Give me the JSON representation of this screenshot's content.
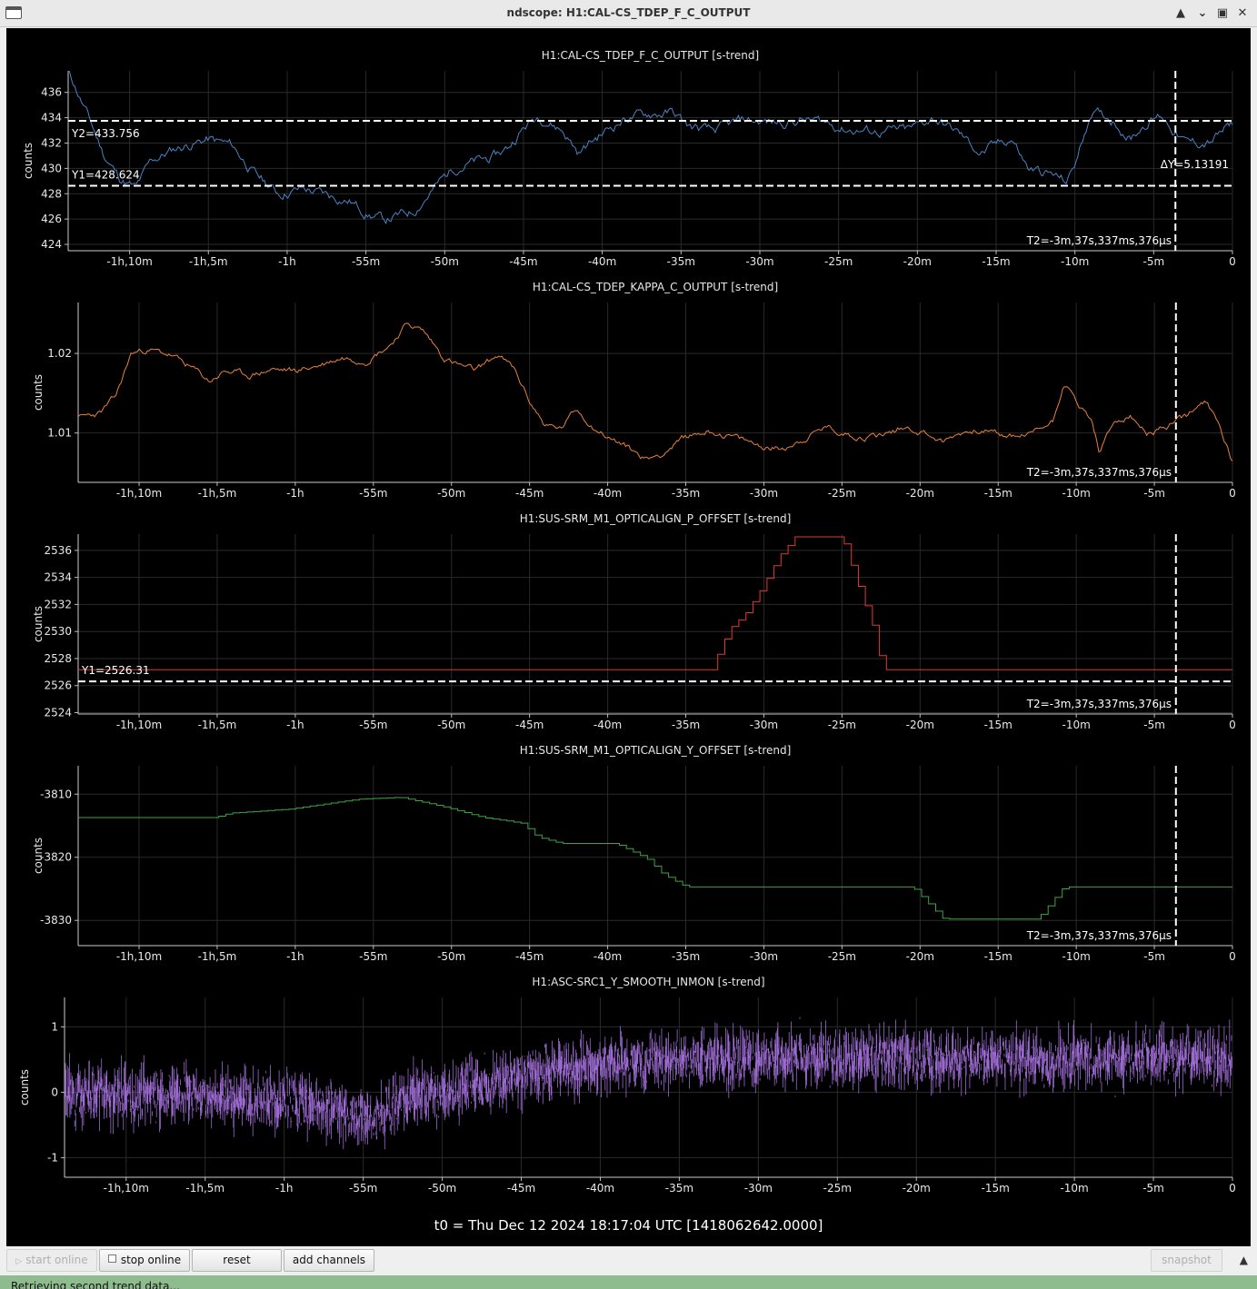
{
  "window": {
    "title": "ndscope: H1:CAL-CS_TDEP_F_C_OUTPUT",
    "buttons": [
      "▲",
      "⌄",
      "▣",
      "✕"
    ]
  },
  "t0_label": "t0 = Thu Dec 12 2024 18:17:04 UTC [1418062642.0000]",
  "x_ticks": [
    "-1h,10m",
    "-1h,5m",
    "-1h",
    "-55m",
    "-50m",
    "-45m",
    "-40m",
    "-35m",
    "-30m",
    "-25m",
    "-20m",
    "-15m",
    "-10m",
    "-5m",
    "0"
  ],
  "x_range_minutes": [
    -73.9,
    0
  ],
  "cursor_t2_minutes": -3.62,
  "t2_label": "T2=-3m,37s,337ms,376µs",
  "toolbar": {
    "start_online": "start online",
    "stop_online": "stop online",
    "reset": "reset",
    "add_channels": "add channels",
    "snapshot": "snapshot"
  },
  "status": "Retrieving second trend data...",
  "plots": [
    {
      "title": "H1:CAL-CS_TDEP_F_C_OUTPUT [s-trend]",
      "ylabel": "counts",
      "color": "#4a84c4",
      "ylim": [
        423.5,
        437.7
      ],
      "yticks": [
        424,
        426,
        428,
        430,
        432,
        434,
        436
      ],
      "y1": 428.624,
      "y1_label": "Y1=428.624",
      "y2": 433.756,
      "y2_label": "Y2=433.756",
      "dy_label": "ΔY=5.13191",
      "seed": 11,
      "noise": 0.3,
      "style": "line",
      "points": [
        [
          -73.9,
          437.8
        ],
        [
          -72.6,
          434
        ],
        [
          -71.6,
          431
        ],
        [
          -70.6,
          429.2
        ],
        [
          -69.6,
          428.4
        ],
        [
          -68.6,
          430.6
        ],
        [
          -67.0,
          431.6
        ],
        [
          -65.0,
          432.3
        ],
        [
          -63.5,
          431.8
        ],
        [
          -62.0,
          429.5
        ],
        [
          -60.5,
          428
        ],
        [
          -59.0,
          428.4
        ],
        [
          -57.5,
          427.9
        ],
        [
          -56.0,
          427.4
        ],
        [
          -55.0,
          426.5
        ],
        [
          -53.8,
          425.9
        ],
        [
          -52.0,
          426.6
        ],
        [
          -51.0,
          428.0
        ],
        [
          -49.5,
          430.0
        ],
        [
          -48.5,
          430.4
        ],
        [
          -47.0,
          430.8
        ],
        [
          -46.0,
          431.6
        ],
        [
          -45.0,
          433.2
        ],
        [
          -44.0,
          434.2
        ],
        [
          -42.5,
          433.0
        ],
        [
          -41.5,
          431.2
        ],
        [
          -40.5,
          432.3
        ],
        [
          -39.5,
          433.2
        ],
        [
          -38.5,
          434.0
        ],
        [
          -37.0,
          434.3
        ],
        [
          -35.5,
          434.4
        ],
        [
          -34.5,
          433.3
        ],
        [
          -33.0,
          432.9
        ],
        [
          -31.0,
          433.8
        ],
        [
          -29.0,
          433.6
        ],
        [
          -27.5,
          433.8
        ],
        [
          -26.0,
          433.7
        ],
        [
          -24.5,
          433.1
        ],
        [
          -22.5,
          432.9
        ],
        [
          -20.5,
          433.0
        ],
        [
          -19.0,
          434.0
        ],
        [
          -17.5,
          432.9
        ],
        [
          -16.0,
          431.2
        ],
        [
          -15.0,
          431.8
        ],
        [
          -14.0,
          432.4
        ],
        [
          -13.0,
          430.0
        ],
        [
          -11.5,
          429.5
        ],
        [
          -10.5,
          428.9
        ],
        [
          -9.8,
          431.0
        ],
        [
          -9.0,
          434.5
        ],
        [
          -7.5,
          433.8
        ],
        [
          -6.5,
          432.4
        ],
        [
          -5.5,
          433.6
        ],
        [
          -4.5,
          434.2
        ],
        [
          -3.0,
          432.0
        ],
        [
          -1.5,
          432.0
        ],
        [
          0,
          433.5
        ]
      ]
    },
    {
      "title": "H1:CAL-CS_TDEP_KAPPA_C_OUTPUT [s-trend]",
      "ylabel": "counts",
      "color": "#e8823a",
      "ylim": [
        1.0038,
        1.0264
      ],
      "yticks": [
        1.01,
        1.02
      ],
      "y1": null,
      "y1_label": "",
      "y2": null,
      "y2_label": "",
      "dy_label": "",
      "seed": 23,
      "noise": 0.0003,
      "style": "line",
      "points": [
        [
          -73.9,
          1.0118
        ],
        [
          -72.5,
          1.0125
        ],
        [
          -71.5,
          1.0145
        ],
        [
          -70.5,
          1.02
        ],
        [
          -69.5,
          1.0205
        ],
        [
          -68.0,
          1.0198
        ],
        [
          -66.5,
          1.018
        ],
        [
          -65.5,
          1.0165
        ],
        [
          -64.5,
          1.0178
        ],
        [
          -63.0,
          1.0172
        ],
        [
          -61.5,
          1.018
        ],
        [
          -60.0,
          1.0178
        ],
        [
          -58.5,
          1.0185
        ],
        [
          -57.0,
          1.0195
        ],
        [
          -55.5,
          1.0192
        ],
        [
          -54.0,
          1.021
        ],
        [
          -52.8,
          1.0238
        ],
        [
          -51.8,
          1.0228
        ],
        [
          -50.5,
          1.0195
        ],
        [
          -49.5,
          1.0185
        ],
        [
          -48.5,
          1.0178
        ],
        [
          -47.0,
          1.0198
        ],
        [
          -46.0,
          1.018
        ],
        [
          -45.0,
          1.014
        ],
        [
          -44.0,
          1.011
        ],
        [
          -43.0,
          1.0105
        ],
        [
          -42.0,
          1.013
        ],
        [
          -41.0,
          1.011
        ],
        [
          -40.0,
          1.0095
        ],
        [
          -39.0,
          1.0085
        ],
        [
          -37.5,
          1.0067
        ],
        [
          -36.5,
          1.0075
        ],
        [
          -35.0,
          1.0095
        ],
        [
          -33.5,
          1.0103
        ],
        [
          -32.0,
          1.0095
        ],
        [
          -30.5,
          1.0085
        ],
        [
          -29.0,
          1.008
        ],
        [
          -27.5,
          1.0092
        ],
        [
          -26.0,
          1.0108
        ],
        [
          -25.0,
          1.01
        ],
        [
          -23.5,
          1.0095
        ],
        [
          -22.0,
          1.01
        ],
        [
          -21.0,
          1.0108
        ],
        [
          -19.5,
          1.01
        ],
        [
          -18.5,
          1.0088
        ],
        [
          -17.5,
          1.01
        ],
        [
          -16.0,
          1.0105
        ],
        [
          -14.5,
          1.0095
        ],
        [
          -13.0,
          1.0098
        ],
        [
          -11.5,
          1.0115
        ],
        [
          -10.8,
          1.0165
        ],
        [
          -10.0,
          1.014
        ],
        [
          -9.0,
          1.0115
        ],
        [
          -8.5,
          1.0075
        ],
        [
          -7.5,
          1.0115
        ],
        [
          -6.5,
          1.012
        ],
        [
          -5.5,
          1.0098
        ],
        [
          -4.5,
          1.0105
        ],
        [
          -3.0,
          1.012
        ],
        [
          -1.8,
          1.0138
        ],
        [
          -1.0,
          1.0118
        ],
        [
          0,
          1.0066
        ]
      ]
    },
    {
      "title": "H1:SUS-SRM_M1_OPTICALIGN_P_OFFSET [s-trend]",
      "ylabel": "counts",
      "color": "#e03a30",
      "ylim": [
        2523.9,
        2537.2
      ],
      "yticks": [
        2524,
        2526,
        2528,
        2530,
        2532,
        2534,
        2536
      ],
      "y1": 2526.31,
      "y1_label": "Y1=2526.31",
      "y2": null,
      "y2_label": "",
      "dy_label": "",
      "seed": 5,
      "noise": 0,
      "style": "step",
      "points": [
        [
          -73.9,
          2527.18
        ],
        [
          -33.4,
          2527.18
        ],
        [
          -32.2,
          2530.2
        ],
        [
          -31.2,
          2531.3
        ],
        [
          -30.2,
          2533.1
        ],
        [
          -29.0,
          2535.6
        ],
        [
          -28.0,
          2537.0
        ],
        [
          -25.0,
          2537.0
        ],
        [
          -24.0,
          2533.5
        ],
        [
          -23.0,
          2530.3
        ],
        [
          -22.4,
          2527.18
        ],
        [
          0,
          2527.18
        ]
      ]
    },
    {
      "title": "H1:SUS-SRM_M1_OPTICALIGN_Y_OFFSET [s-trend]",
      "ylabel": "counts",
      "color": "#3fa342",
      "ylim": [
        -3834,
        -3805.5
      ],
      "yticks": [
        -3810,
        -3820,
        -3830
      ],
      "y1": null,
      "y1_label": "",
      "y2": null,
      "y2_label": "",
      "dy_label": "",
      "seed": 7,
      "noise": 0,
      "style": "step",
      "points": [
        [
          -73.9,
          -3813.7
        ],
        [
          -65.2,
          -3813.7
        ],
        [
          -64.2,
          -3813.0
        ],
        [
          -60.5,
          -3812.4
        ],
        [
          -58.0,
          -3811.5
        ],
        [
          -56.0,
          -3810.8
        ],
        [
          -53.3,
          -3810.5
        ],
        [
          -50.5,
          -3812.0
        ],
        [
          -48.0,
          -3813.7
        ],
        [
          -45.5,
          -3814.6
        ],
        [
          -44.5,
          -3816.8
        ],
        [
          -43.0,
          -3817.8
        ],
        [
          -39.5,
          -3817.8
        ],
        [
          -37.5,
          -3820.2
        ],
        [
          -36.5,
          -3822.6
        ],
        [
          -35.0,
          -3824.7
        ],
        [
          -20.5,
          -3824.7
        ],
        [
          -18.5,
          -3829.8
        ],
        [
          -12.5,
          -3829.8
        ],
        [
          -10.8,
          -3824.7
        ],
        [
          0,
          -3824.7
        ]
      ]
    },
    {
      "title": "H1:ASC-SRC1_Y_SMOOTH_INMON [s-trend]",
      "ylabel": "counts",
      "color": "#9b6ad0",
      "ylim": [
        -1.3,
        1.45
      ],
      "yticks": [
        1,
        0,
        -1
      ],
      "y1": null,
      "y1_label": "",
      "y2": null,
      "y2_label": "",
      "dy_label": "",
      "seed": 3,
      "noise": 0.2,
      "style": "band",
      "points": [
        [
          -73.9,
          0.0
        ],
        [
          -70.0,
          -0.05
        ],
        [
          -65.0,
          -0.05
        ],
        [
          -60.0,
          -0.15
        ],
        [
          -56.0,
          -0.3
        ],
        [
          -54.5,
          -0.4
        ],
        [
          -52.0,
          -0.05
        ],
        [
          -48.0,
          0.1
        ],
        [
          -45.0,
          0.25
        ],
        [
          -42.0,
          0.35
        ],
        [
          -39.0,
          0.45
        ],
        [
          -35.0,
          0.5
        ],
        [
          -28.0,
          0.52
        ],
        [
          -20.0,
          0.52
        ],
        [
          -10.0,
          0.5
        ],
        [
          0,
          0.55
        ]
      ]
    }
  ]
}
